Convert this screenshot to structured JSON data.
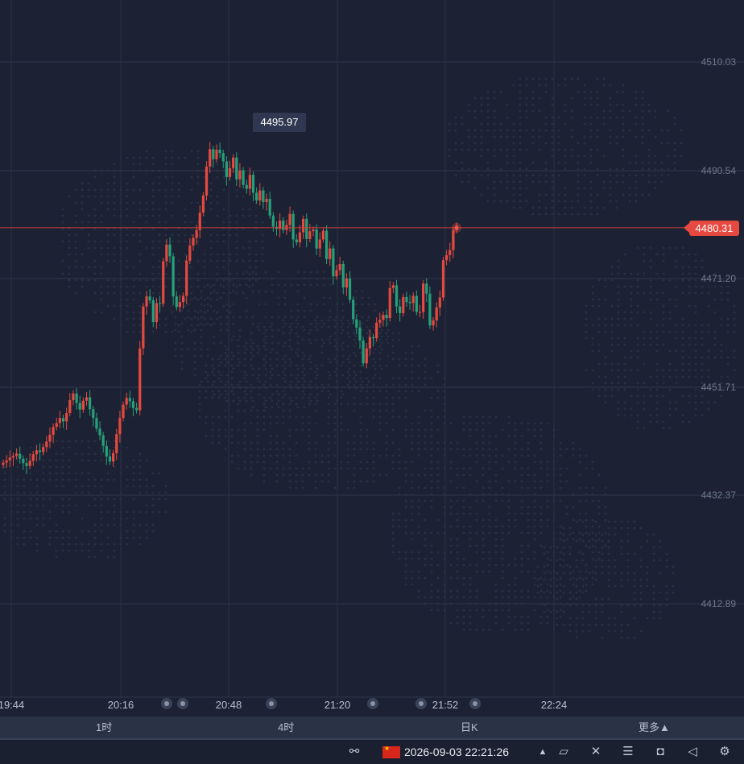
{
  "chart_data": {
    "type": "candlestick",
    "y_axis": {
      "ticks": [
        "4510.03",
        "4490.54",
        "4471.20",
        "4451.71",
        "4432.37",
        "4412.89"
      ],
      "range": [
        4400,
        4520
      ],
      "position": "right"
    },
    "x_axis": {
      "ticks": [
        "19:44",
        "20:16",
        "20:48",
        "21:20",
        "21:52",
        "22:24"
      ]
    },
    "current_price": "4480.31",
    "high_label": "4495.97",
    "grid": true,
    "up_color": "#e5493f",
    "down_color": "#26a07a",
    "closes": [
      4438.2,
      4438.6,
      4439.1,
      4439.4,
      4439.8,
      4438.9,
      4438.1,
      4437.6,
      4438.5,
      4439.7,
      4440.4,
      4440.1,
      4441.0,
      4442.0,
      4443.2,
      4444.6,
      4445.3,
      4446.2,
      4445.6,
      4447.1,
      4449.4,
      4450.6,
      4448.9,
      4447.7,
      4449.3,
      4449.9,
      4447.8,
      4446.2,
      4444.3,
      4443.1,
      4441.2,
      4439.3,
      4438.4,
      4439.9,
      4443.3,
      4446.2,
      4448.6,
      4449.8,
      4449.2,
      4448.0,
      4447.6,
      4458.7,
      4466.2,
      4468.0,
      4467.3,
      4463.4,
      4466.8,
      4466.7,
      4474.3,
      4477.3,
      4475.2,
      4468.0,
      4466.1,
      4467.0,
      4468.1,
      4474.4,
      4477.1,
      4478.5,
      4479.9,
      4483.0,
      4486.1,
      4491.3,
      4494.4,
      4492.6,
      4494.3,
      4493.7,
      4492.2,
      4489.4,
      4491.0,
      4492.9,
      4489.0,
      4490.6,
      4488.0,
      4487.3,
      4489.8,
      4486.6,
      4485.2,
      4487.0,
      4484.9,
      4485.5,
      4482.5,
      4480.5,
      4480.1,
      4481.6,
      4479.9,
      4480.8,
      4482.8,
      4478.2,
      4477.7,
      4479.5,
      4481.9,
      4478.3,
      4479.7,
      4480.0,
      4476.6,
      4478.2,
      4479.8,
      4474.7,
      4476.6,
      4471.6,
      4472.7,
      4473.8,
      4469.6,
      4471.2,
      4467.4,
      4463.9,
      4462.4,
      4460.1,
      4456.0,
      4458.7,
      4460.7,
      4460.5,
      4463.3,
      4463.8,
      4464.7,
      4464.1,
      4469.5,
      4470.0,
      4466.2,
      4465.0,
      4467.9,
      4467.0,
      4466.8,
      4468.1,
      4465.2,
      4465.2,
      4470.3,
      4468.5,
      4462.8,
      4463.7,
      4466.0,
      4467.8,
      4474.5,
      4475.4,
      4476.3,
      4479.9,
      4480.31
    ]
  },
  "period_bar": {
    "items": [
      "1时",
      "4时",
      "日K",
      "更多▲"
    ]
  },
  "status_bar": {
    "datetime": "2026-09-03 22:21:26"
  }
}
